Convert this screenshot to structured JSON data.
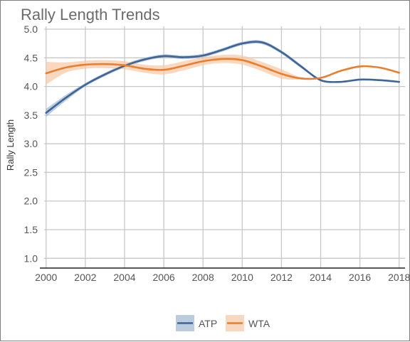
{
  "chart_data": {
    "type": "line",
    "title": "Rally Length Trends",
    "xlabel": "",
    "ylabel": "Rally Length",
    "xlim": [
      1999.9,
      2018.3
    ],
    "ylim": [
      0.83,
      5.05
    ],
    "x_ticks": [
      2000,
      2002,
      2004,
      2006,
      2008,
      2010,
      2012,
      2014,
      2016,
      2018
    ],
    "y_ticks": [
      1.0,
      1.5,
      2.0,
      2.5,
      3.0,
      3.5,
      4.0,
      4.5,
      5.0
    ],
    "y_tick_labels": [
      "1.0",
      "1.5",
      "2.0",
      "2.5",
      "3.0",
      "3.5",
      "4.0",
      "4.5",
      "5.0"
    ],
    "grid": true,
    "legend_position": "bottom",
    "series": [
      {
        "name": "ATP",
        "color": "#3e6498",
        "band_color": "#9fb6d2",
        "x": [
          2000,
          2001,
          2002,
          2003,
          2004,
          2005,
          2006,
          2007,
          2008,
          2009,
          2010,
          2011,
          2012,
          2013,
          2014,
          2015,
          2016,
          2017,
          2018
        ],
        "y": [
          3.54,
          3.8,
          4.03,
          4.21,
          4.36,
          4.47,
          4.53,
          4.51,
          4.54,
          4.64,
          4.75,
          4.77,
          4.6,
          4.35,
          4.11,
          4.08,
          4.12,
          4.11,
          4.08
        ],
        "lower": [
          3.47,
          3.75,
          4.0,
          4.18,
          4.33,
          4.44,
          4.5,
          4.48,
          4.51,
          4.61,
          4.72,
          4.74,
          4.57,
          4.32,
          4.11,
          4.08,
          4.12,
          4.11,
          4.08
        ],
        "upper": [
          3.61,
          3.85,
          4.06,
          4.24,
          4.39,
          4.5,
          4.56,
          4.54,
          4.57,
          4.67,
          4.78,
          4.8,
          4.63,
          4.38,
          4.11,
          4.08,
          4.12,
          4.11,
          4.08
        ]
      },
      {
        "name": "WTA",
        "color": "#e97f2e",
        "band_color": "#f7c8a4",
        "x": [
          2000,
          2001,
          2002,
          2003,
          2004,
          2005,
          2006,
          2007,
          2008,
          2009,
          2010,
          2011,
          2012,
          2013,
          2014,
          2015,
          2016,
          2017,
          2018
        ],
        "y": [
          4.23,
          4.33,
          4.38,
          4.39,
          4.37,
          4.31,
          4.29,
          4.36,
          4.44,
          4.48,
          4.46,
          4.35,
          4.22,
          4.14,
          4.15,
          4.27,
          4.35,
          4.33,
          4.24
        ],
        "lower": [
          4.03,
          4.24,
          4.31,
          4.32,
          4.3,
          4.24,
          4.21,
          4.28,
          4.37,
          4.41,
          4.38,
          4.27,
          4.14,
          4.12,
          4.15,
          4.27,
          4.35,
          4.33,
          4.24
        ],
        "upper": [
          4.43,
          4.42,
          4.45,
          4.46,
          4.44,
          4.38,
          4.37,
          4.44,
          4.51,
          4.55,
          4.54,
          4.43,
          4.3,
          4.16,
          4.15,
          4.27,
          4.35,
          4.33,
          4.24
        ]
      }
    ]
  }
}
